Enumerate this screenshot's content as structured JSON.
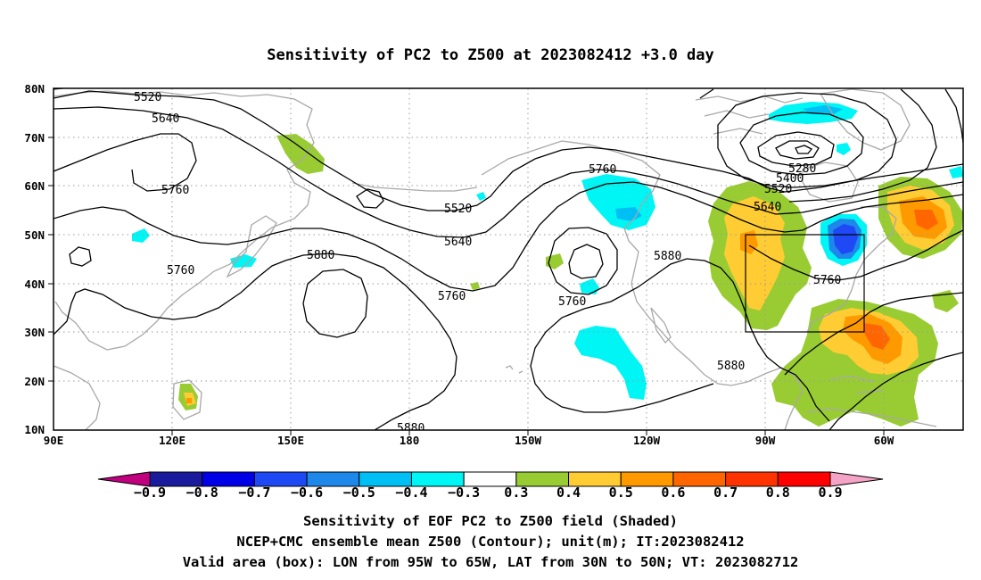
{
  "title": "Sensitivity of PC2 to Z500 at 2023082412 +3.0 day",
  "axes": {
    "lat_labels": [
      "10N",
      "20N",
      "30N",
      "40N",
      "50N",
      "60N",
      "70N",
      "80N"
    ],
    "lon_labels": [
      "90E",
      "120E",
      "150E",
      "180",
      "150W",
      "120W",
      "90W",
      "60W"
    ]
  },
  "contour_labels": {
    "l5520a": "5520",
    "l5640a": "5640",
    "l5760a": "5760",
    "l5760b": "5760",
    "l5880a": "5880",
    "l5520b": "5520",
    "l5640b": "5640",
    "l5760c": "5760",
    "l5760d": "5760",
    "l5760e": "5760",
    "l5880b": "5880",
    "l5880c": "5880",
    "l5880d": "5880",
    "l5280": "5280",
    "l5400": "5400",
    "l5520c": "5520",
    "l5640c": "5640",
    "l5760f": "5760"
  },
  "colorbar": {
    "labels": [
      "−0.9",
      "−0.8",
      "−0.7",
      "−0.6",
      "−0.5",
      "−0.4",
      "−0.3",
      "0.3",
      "0.4",
      "0.5",
      "0.6",
      "0.7",
      "0.8",
      "0.9"
    ],
    "colors": [
      "#1a1a9c",
      "#0000e6",
      "#1f49f5",
      "#1e88ea",
      "#00bff5",
      "#00f5f5",
      "#ffffff",
      "#99cc33",
      "#ffcc33",
      "#ff9900",
      "#ff6600",
      "#ff3300",
      "#ff0000"
    ],
    "low_end_color": "#c0007e",
    "high_end_color": "#f5a3c7"
  },
  "caption": {
    "line1": "Sensitivity of EOF PC2 to Z500 field (Shaded)",
    "line2": "NCEP+CMC ensemble mean Z500 (Contour); unit(m); IT:2023082412",
    "line3": "Valid area (box): LON from 95W to 65W, LAT from 30N to 50N; VT: 2023082712"
  },
  "valid_box": {
    "lon_min": -95,
    "lon_max": -65,
    "lat_min": 30,
    "lat_max": 50
  }
}
